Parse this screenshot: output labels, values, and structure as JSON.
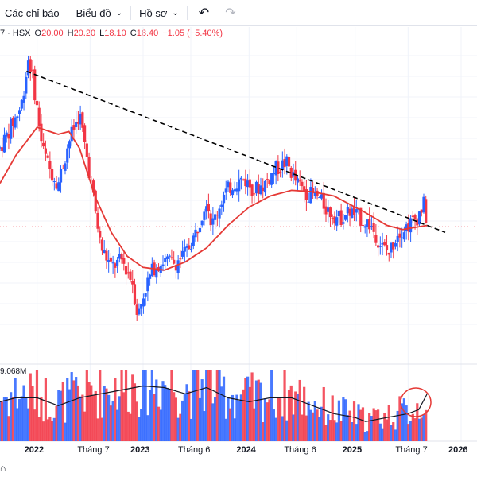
{
  "toolbar": {
    "indicators_label": "Các chỉ báo",
    "chart_label": "Biểu đồ",
    "profile_label": "Hồ sơ"
  },
  "legend": {
    "symbol": "7 · HSX",
    "open_key": "O",
    "open_val": "20.00",
    "high_key": "H",
    "high_val": "20.20",
    "low_key": "L",
    "low_val": "18.10",
    "close_key": "C",
    "close_val": "18.40",
    "change": "−1.05 (−5.40%)"
  },
  "volume_label": "9.068M",
  "x_axis": [
    {
      "label": "2022",
      "year": true
    },
    {
      "label": "Tháng 7",
      "year": false
    },
    {
      "label": "2023",
      "year": true
    },
    {
      "label": "Tháng 6",
      "year": false
    },
    {
      "label": "2024",
      "year": true
    },
    {
      "label": "Tháng 6",
      "year": false
    },
    {
      "label": "2025",
      "year": true
    },
    {
      "label": "Tháng 7",
      "year": false
    },
    {
      "label": "2026",
      "year": true
    }
  ],
  "colors": {
    "up": "#2962ff",
    "down": "#f23645",
    "ma": "#e53935",
    "trendline": "#000000"
  },
  "chart_data": {
    "type": "candlestick",
    "price_path": [
      [
        2021.65,
        24.0
      ],
      [
        2021.85,
        27.0
      ],
      [
        2021.92,
        30.5
      ],
      [
        2021.96,
        29.0
      ],
      [
        2022.05,
        24.0
      ],
      [
        2022.12,
        22.5
      ],
      [
        2022.2,
        21.5
      ],
      [
        2022.3,
        24.5
      ],
      [
        2022.4,
        26.5
      ],
      [
        2022.5,
        22.0
      ],
      [
        2022.6,
        17.0
      ],
      [
        2022.7,
        15.5
      ],
      [
        2022.8,
        16.0
      ],
      [
        2022.9,
        14.5
      ],
      [
        2022.95,
        12.0
      ],
      [
        2023.02,
        14.0
      ],
      [
        2023.1,
        15.5
      ],
      [
        2023.2,
        16.0
      ],
      [
        2023.3,
        15.8
      ],
      [
        2023.4,
        16.5
      ],
      [
        2023.5,
        18.0
      ],
      [
        2023.6,
        20.5
      ],
      [
        2023.65,
        18.5
      ],
      [
        2023.75,
        20.5
      ],
      [
        2023.85,
        21.5
      ],
      [
        2023.95,
        21.8
      ],
      [
        2024.05,
        21.0
      ],
      [
        2024.15,
        21.5
      ],
      [
        2024.25,
        22.5
      ],
      [
        2024.35,
        23.0
      ],
      [
        2024.45,
        21.5
      ],
      [
        2024.55,
        20.8
      ],
      [
        2024.65,
        20.5
      ],
      [
        2024.75,
        19.5
      ],
      [
        2024.85,
        19.0
      ],
      [
        2024.95,
        19.5
      ],
      [
        2025.05,
        19.0
      ],
      [
        2025.15,
        18.5
      ],
      [
        2025.25,
        17.0
      ],
      [
        2025.32,
        16.5
      ],
      [
        2025.4,
        18.0
      ],
      [
        2025.5,
        18.5
      ],
      [
        2025.58,
        19.0
      ],
      [
        2025.65,
        20.0
      ],
      [
        2025.68,
        18.4
      ]
    ],
    "ma_path": [
      [
        2021.65,
        21.5
      ],
      [
        2021.8,
        23.5
      ],
      [
        2022.0,
        25.5
      ],
      [
        2022.2,
        25.0
      ],
      [
        2022.3,
        25.2
      ],
      [
        2022.4,
        24.0
      ],
      [
        2022.55,
        20.5
      ],
      [
        2022.7,
        18.0
      ],
      [
        2022.85,
        16.3
      ],
      [
        2023.0,
        15.5
      ],
      [
        2023.2,
        15.3
      ],
      [
        2023.4,
        15.9
      ],
      [
        2023.6,
        16.9
      ],
      [
        2023.8,
        18.5
      ],
      [
        2024.0,
        19.8
      ],
      [
        2024.2,
        20.6
      ],
      [
        2024.4,
        21.0
      ],
      [
        2024.6,
        20.9
      ],
      [
        2024.8,
        20.6
      ],
      [
        2024.95,
        20.0
      ],
      [
        2025.1,
        19.4
      ],
      [
        2025.3,
        18.5
      ],
      [
        2025.45,
        18.2
      ],
      [
        2025.6,
        18.4
      ],
      [
        2025.68,
        18.5
      ]
    ],
    "trendline": [
      [
        2021.9,
        29.5
      ],
      [
        2025.85,
        18.0
      ]
    ],
    "current_price": 18.4,
    "volume_ma": [
      [
        2021.65,
        5.0
      ],
      [
        2021.8,
        5.5
      ],
      [
        2022.0,
        5.5
      ],
      [
        2022.2,
        4.5
      ],
      [
        2022.4,
        5.5
      ],
      [
        2022.6,
        6.0
      ],
      [
        2022.8,
        6.5
      ],
      [
        2023.0,
        7.0
      ],
      [
        2023.2,
        6.8
      ],
      [
        2023.4,
        6.0
      ],
      [
        2023.6,
        6.8
      ],
      [
        2023.8,
        5.5
      ],
      [
        2024.0,
        5.0
      ],
      [
        2024.2,
        5.5
      ],
      [
        2024.4,
        5.5
      ],
      [
        2024.6,
        4.5
      ],
      [
        2024.8,
        3.5
      ],
      [
        2025.0,
        3.0
      ],
      [
        2025.1,
        2.5
      ],
      [
        2025.3,
        3.0
      ],
      [
        2025.5,
        3.5
      ],
      [
        2025.6,
        4.0
      ],
      [
        2025.68,
        6.0
      ]
    ],
    "volume_max": 9.068
  }
}
